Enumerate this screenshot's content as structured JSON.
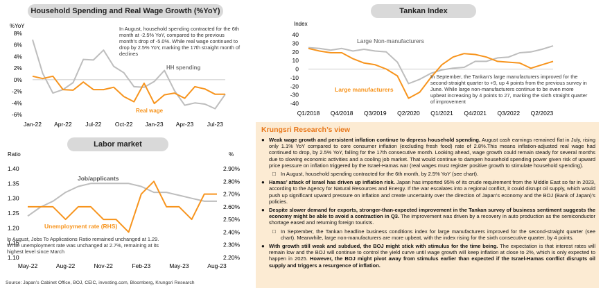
{
  "chart_data": [
    {
      "type": "line",
      "title": "Household Spending and Real Wage Growth (%YoY)",
      "ylabel": "%YoY",
      "yticks": [
        "8%",
        "6%",
        "4%",
        "2%",
        "0%",
        "-2%",
        "-4%",
        "-6%"
      ],
      "ylim": [
        -6,
        8
      ],
      "xticks": [
        "Jan-22",
        "Apr-22",
        "Jul-22",
        "Oct-22",
        "Jan-23",
        "Apr-23",
        "Jul-23"
      ],
      "x": [
        "Jan-22",
        "Feb-22",
        "Mar-22",
        "Apr-22",
        "May-22",
        "Jun-22",
        "Jul-22",
        "Aug-22",
        "Sep-22",
        "Oct-22",
        "Nov-22",
        "Dec-22",
        "Jan-23",
        "Feb-23",
        "Mar-23",
        "Apr-23",
        "May-23",
        "Jun-23",
        "Jul-23",
        "Aug-23"
      ],
      "series": [
        {
          "name": "HH spending",
          "color": "#bdbdbd",
          "values": [
            6.9,
            1.1,
            -2.3,
            -1.7,
            -0.5,
            3.5,
            3.4,
            5.1,
            2.3,
            1.2,
            -1.2,
            -1.3,
            -0.3,
            1.6,
            -1.9,
            -4.4,
            -4.0,
            -4.2,
            -5.0,
            -2.5
          ]
        },
        {
          "name": "Real wage",
          "color": "#f7941d",
          "values": [
            0.6,
            0.2,
            0.6,
            -1.7,
            -1.8,
            -0.4,
            -1.7,
            -1.7,
            -1.3,
            -2.9,
            -3.8,
            -0.6,
            -4.1,
            -2.6,
            -2.3,
            -3.2,
            -1.2,
            -1.6,
            -2.5,
            -2.5
          ]
        }
      ],
      "annotations": [
        "In August, household spending contracted for the 6th month at -2.5% YoY, compared to the previous month's drop of -5.0%. While real wage continued to drop by 2.5% YoY, marking the 17th straight month of declines"
      ]
    },
    {
      "type": "line",
      "title": "Tankan Index",
      "ylabel": "Index",
      "yticks": [
        "40",
        "30",
        "20",
        "10",
        "0",
        "-10",
        "-20",
        "-30",
        "-40"
      ],
      "ylim": [
        -40,
        40
      ],
      "xticks": [
        "Q1/2018",
        "Q4/2018",
        "Q3/2019",
        "Q2/2020",
        "Q1/2021",
        "Q4/2021",
        "Q3/2022",
        "Q2/2023"
      ],
      "x": [
        "Q1/2018",
        "Q2/2018",
        "Q3/2018",
        "Q4/2018",
        "Q1/2019",
        "Q2/2019",
        "Q3/2019",
        "Q4/2019",
        "Q1/2020",
        "Q2/2020",
        "Q3/2020",
        "Q4/2020",
        "Q1/2021",
        "Q2/2021",
        "Q3/2021",
        "Q4/2021",
        "Q1/2022",
        "Q2/2022",
        "Q3/2022",
        "Q4/2022",
        "Q1/2023",
        "Q2/2023",
        "Q3/2023"
      ],
      "series": [
        {
          "name": "Large Non-manufacturers",
          "color": "#bdbdbd",
          "values": [
            25,
            24,
            22,
            24,
            21,
            23,
            21,
            20,
            8,
            -17,
            -12,
            -5,
            -1,
            1,
            2,
            9,
            9,
            13,
            14,
            19,
            20,
            23,
            27
          ]
        },
        {
          "name": "Large manufacturers",
          "color": "#f7941d",
          "values": [
            24,
            21,
            19,
            19,
            12,
            7,
            5,
            0,
            -8,
            -34,
            -27,
            -10,
            5,
            14,
            18,
            17,
            14,
            9,
            8,
            7,
            1,
            5,
            9
          ]
        }
      ],
      "annotations": [
        "In September, the Tankan’s large manufacturers improved for the second-straight quarter to +9, up 4 points from the previous survey in June. While large non-manufacturers continue to be even more upbeat increasing by 4 points to 27, marking the sixth straight quarter of improvement"
      ]
    },
    {
      "type": "line",
      "title": "Labor market",
      "ylabel_left": "Ratio",
      "ylabel_right": "%",
      "yticks_left": [
        "1.40",
        "1.35",
        "1.30",
        "1.25",
        "1.20",
        "1.15",
        "1.10"
      ],
      "ylim_left": [
        1.1,
        1.4
      ],
      "yticks_right": [
        "2.90%",
        "2.80%",
        "2.70%",
        "2.60%",
        "2.50%",
        "2.40%",
        "2.30%",
        "2.20%"
      ],
      "ylim_right": [
        2.2,
        2.9
      ],
      "xticks": [
        "May-22",
        "Aug-22",
        "Nov-22",
        "Feb-23",
        "May-23",
        "Aug-23"
      ],
      "x": [
        "May-22",
        "Jun-22",
        "Jul-22",
        "Aug-22",
        "Sep-22",
        "Oct-22",
        "Nov-22",
        "Dec-22",
        "Jan-23",
        "Feb-23",
        "Mar-23",
        "Apr-23",
        "May-23",
        "Jun-23",
        "Jul-23",
        "Aug-23"
      ],
      "series": [
        {
          "name": "Job/applicants",
          "axis": "left",
          "color": "#bdbdbd",
          "values": [
            1.24,
            1.27,
            1.29,
            1.32,
            1.34,
            1.35,
            1.35,
            1.35,
            1.35,
            1.34,
            1.32,
            1.32,
            1.31,
            1.3,
            1.29,
            1.29
          ]
        },
        {
          "name": "Unemployment rate (RHS)",
          "axis": "right",
          "color": "#f7941d",
          "values": [
            2.6,
            2.6,
            2.6,
            2.5,
            2.6,
            2.6,
            2.5,
            2.5,
            2.4,
            2.7,
            2.8,
            2.6,
            2.6,
            2.5,
            2.7,
            2.7
          ]
        }
      ],
      "annotations": [
        "In August, Jobs To Applications Ratio remained unchanged at 1.29. While unemployment rate was unchanged at 2.7%, remaining at its highest level since March"
      ]
    }
  ],
  "view": {
    "title": "Krungsri Research’s view",
    "items": [
      {
        "level": 1,
        "bold": "Weak wage growth and persistent inflation continue to depress household spending.",
        "text": " August cash earnings remained flat in July, rising only 1.1% YoY compared to core consumer inflation (excluding fresh food) rate of 2.8%.This means inflation-adjusted real wage had continued to drop, by 2.5% YoY, falling for the 17th consecutive month. Looking ahead, wage growth could remain steady for several months due to slowing economic activities and a cooling job market. That would continue to dampen household spending power given risk of upward price pressure on inflation triggered by the Israel-Hamas war (real wages must register positive growth to stimulate household spending)."
      },
      {
        "level": 2,
        "bold": "",
        "text": "In August, household spending contracted for the 6th month, by 2.5% YoY (see chart)."
      },
      {
        "level": 1,
        "bold": "Hamas’ attack of Israel has driven up inflation risk.",
        "text": " Japan has imported 95% of its crude requirement from the Middle East so far in 2023, according to the Agency for Natural Resources and Energy. If the war escalates into a regional conflict, it could disrupt oil supply, which would push up significant upward pressure on inflation and create uncertainty over the direction of Japan’s economy and the BOJ (Bank of Japan)’s policies."
      },
      {
        "level": 1,
        "bold": "Despite slower demand for exports, stronger-than-expected improvement in the Tankan survey of business sentiment suggests the economy might be able to avoid a contraction in Q3.",
        "text": " The improvement was driven by a recovery in auto production as the semiconductor shortage eased and returning foreign tourists."
      },
      {
        "level": 2,
        "bold": "",
        "text": "In September, the Tankan headline business conditions index for large manufacturers improved for the second-straight quarter (see chart). Meanwhile, large non-manufacturers are more upbeat, with the index rising for the sixth consecutive quarter, by 4 points."
      },
      {
        "level": 1,
        "bold": "With growth still weak and subdued, the BOJ might stick with stimulus for the time being.",
        "text": " The expectation is that interest rates will remain low and the BOJ will continue to control the yield curve until wage growth will keep inflation at close to 2%, which is only expected to happen in 2025. ",
        "bold2": "However, the BOJ might pivot away from stimulus earlier than expected if the Israel-Hamas conflict disrupts oil supply and triggers a resurgence of inflation."
      }
    ]
  },
  "source": "Source: Japan’s Cabinet Office, BOJ, CEIC, investing.com, Bloomberg, Krungsri Research",
  "colors": {
    "orange": "#f7941d",
    "grey": "#bdbdbd",
    "panel_bg": "#fcebd3",
    "title_bg": "#d9d9d9"
  }
}
